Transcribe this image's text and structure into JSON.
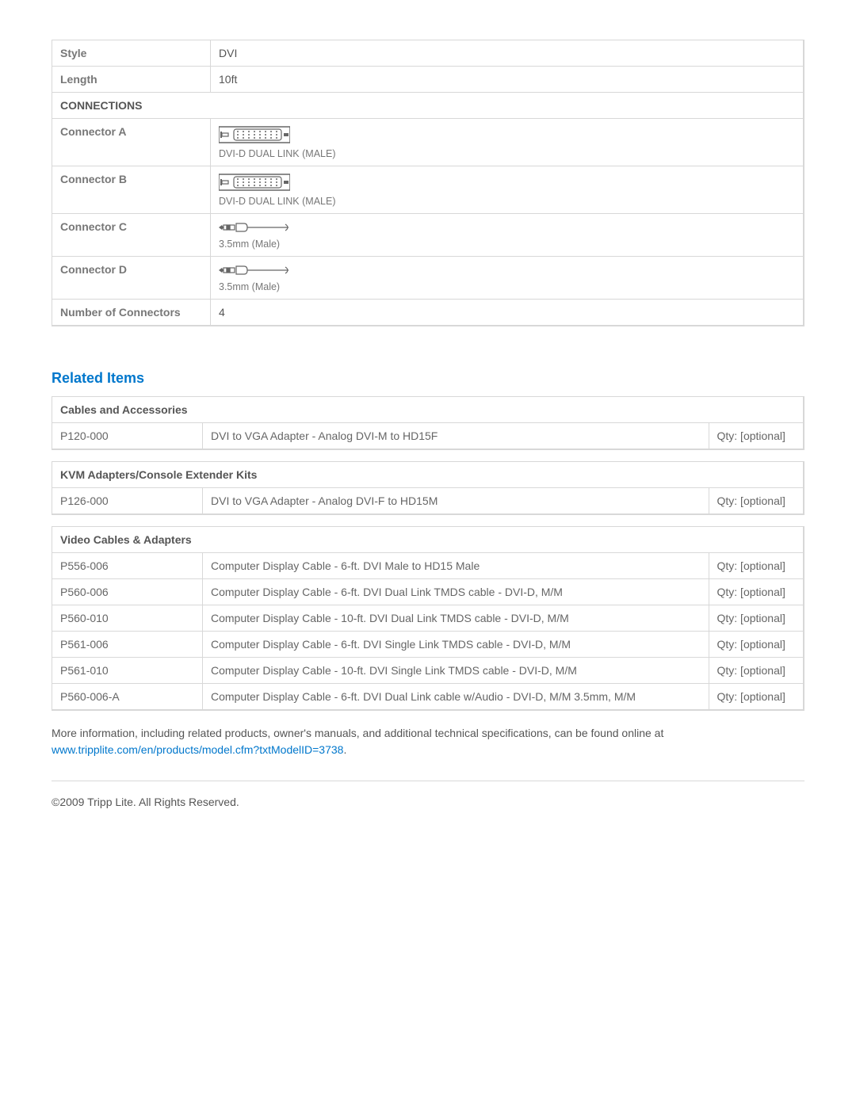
{
  "spec": {
    "style_label": "Style",
    "style_value": "DVI",
    "length_label": "Length",
    "length_value": "10ft",
    "connections_header": "CONNECTIONS",
    "connA_label": "Connector A",
    "connA_caption": "DVI-D DUAL LINK (MALE)",
    "connB_label": "Connector B",
    "connB_caption": "DVI-D DUAL LINK (MALE)",
    "connC_label": "Connector C",
    "connC_caption": "3.5mm (Male)",
    "connD_label": "Connector D",
    "connD_caption": "3.5mm (Male)",
    "num_conn_label": "Number of Connectors",
    "num_conn_value": "4"
  },
  "related_heading": "Related Items",
  "tables": {
    "cables": {
      "header": "Cables and Accessories",
      "rows": [
        {
          "sku": "P120-000",
          "desc": "DVI to VGA Adapter - Analog DVI-M to HD15F",
          "qty": "Qty: [optional]"
        }
      ]
    },
    "kvm": {
      "header": "KVM Adapters/Console Extender Kits",
      "rows": [
        {
          "sku": "P126-000",
          "desc": "DVI to VGA Adapter - Analog DVI-F to HD15M",
          "qty": "Qty: [optional]"
        }
      ]
    },
    "video": {
      "header": "Video Cables & Adapters",
      "rows": [
        {
          "sku": "P556-006",
          "desc": "Computer Display Cable - 6-ft. DVI Male to HD15 Male",
          "qty": "Qty: [optional]"
        },
        {
          "sku": "P560-006",
          "desc": "Computer Display Cable - 6-ft. DVI Dual Link TMDS cable - DVI-D, M/M",
          "qty": "Qty: [optional]"
        },
        {
          "sku": "P560-010",
          "desc": "Computer Display Cable - 10-ft. DVI Dual Link TMDS cable - DVI-D, M/M",
          "qty": "Qty: [optional]"
        },
        {
          "sku": "P561-006",
          "desc": "Computer Display Cable - 6-ft. DVI Single Link TMDS cable - DVI-D, M/M",
          "qty": "Qty: [optional]"
        },
        {
          "sku": "P561-010",
          "desc": "Computer Display Cable - 10-ft. DVI Single Link TMDS cable - DVI-D, M/M",
          "qty": "Qty: [optional]"
        },
        {
          "sku": "P560-006-A",
          "desc": "Computer Display Cable - 6-ft. DVI Dual Link cable w/Audio - DVI-D, M/M 3.5mm, M/M",
          "qty": "Qty: [optional]"
        }
      ]
    }
  },
  "more_info_text": "More information, including related products, owner's manuals, and additional technical specifications, can be found online at ",
  "more_info_link": "www.tripplite.com/en/products/model.cfm?txtModelID=3738",
  "copyright": "©2009 Tripp Lite.  All Rights Reserved."
}
